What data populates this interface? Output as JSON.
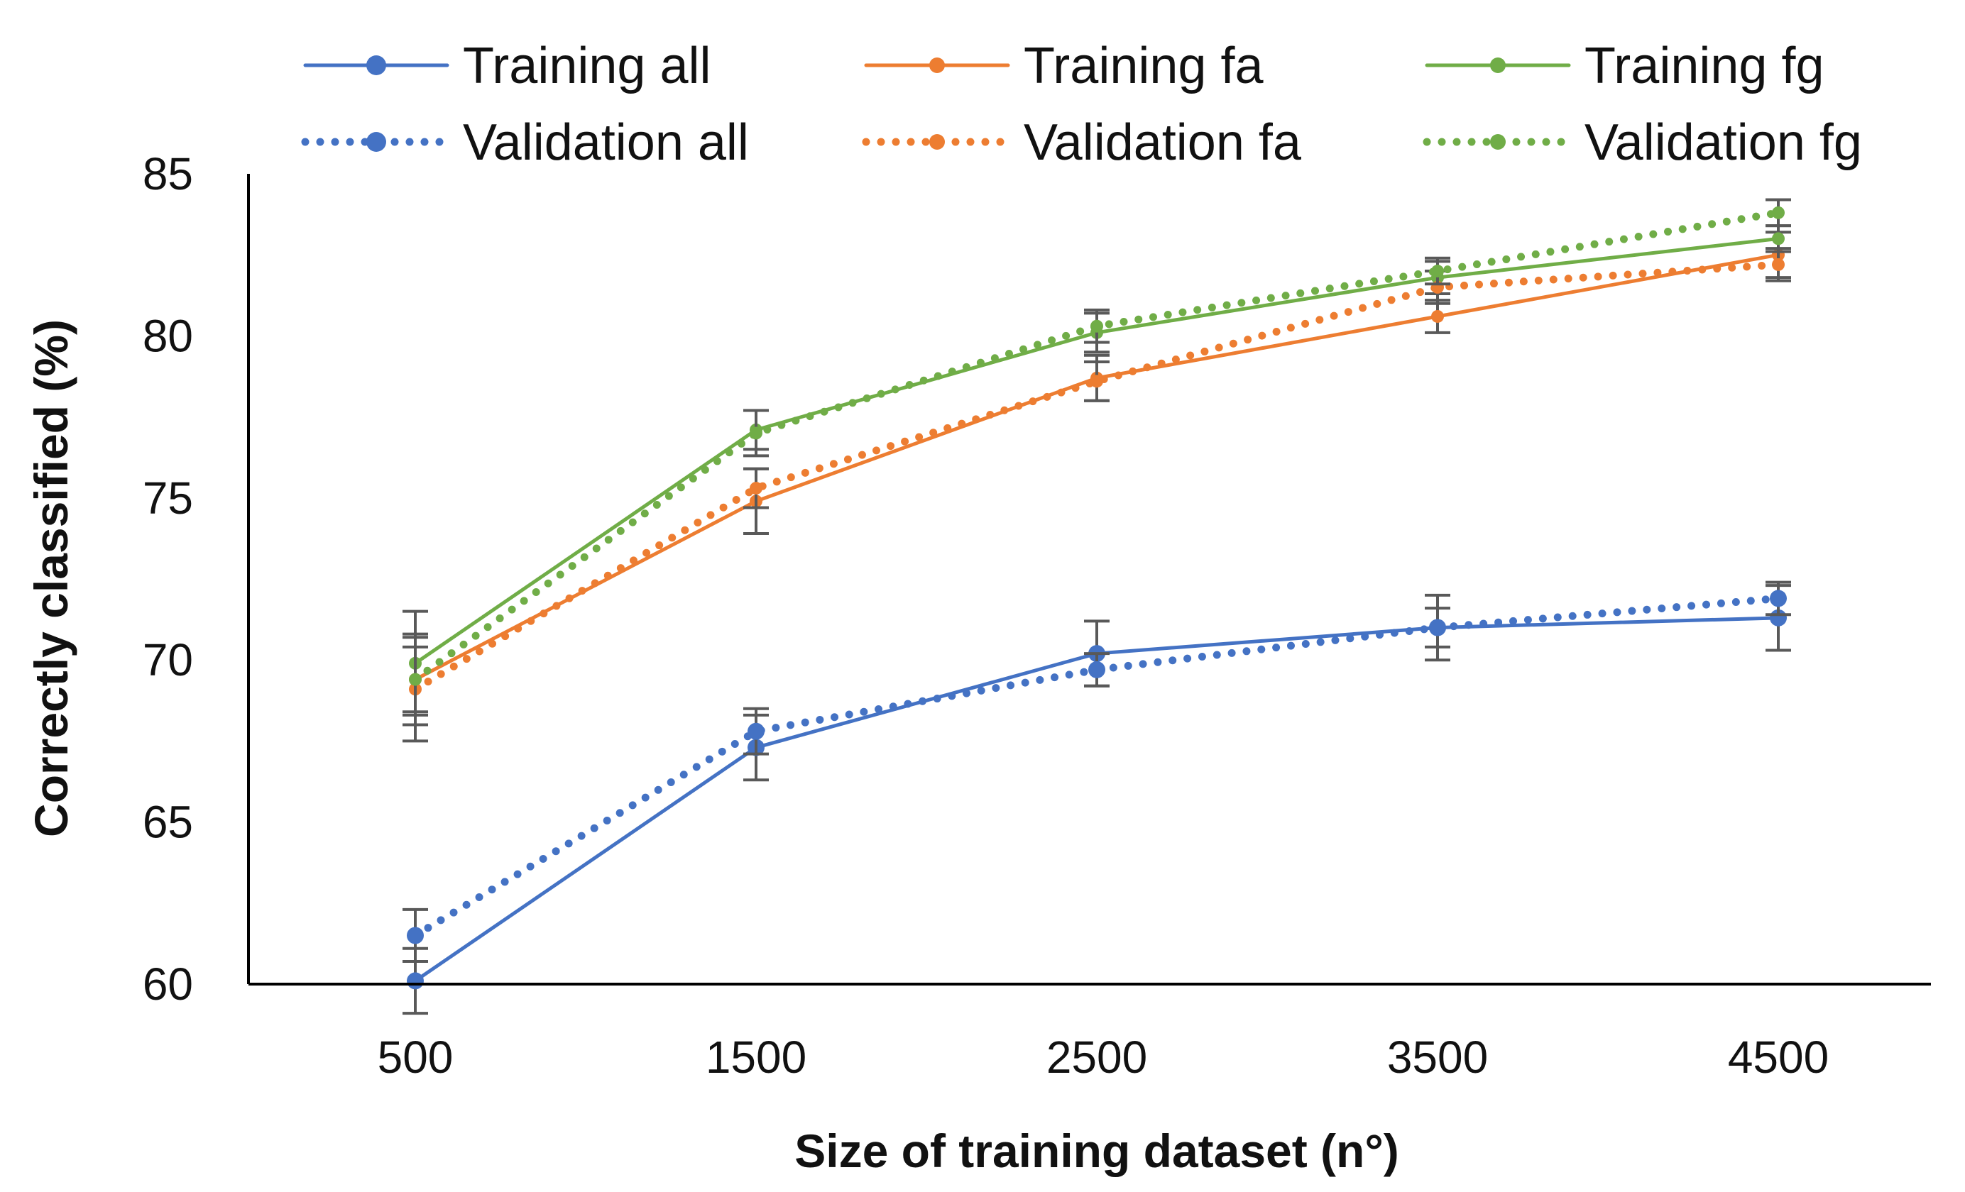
{
  "chart_data": {
    "type": "line",
    "title": "",
    "xlabel": "Size of training dataset (n°)",
    "ylabel": "Correctly classified (%)",
    "categories": [
      "500",
      "1500",
      "2500",
      "3500",
      "4500"
    ],
    "ylim": [
      60,
      85
    ],
    "yticks": [
      "60",
      "65",
      "70",
      "75",
      "80",
      "85"
    ],
    "grid": false,
    "legend_position": "top",
    "series": [
      {
        "name": "Training all",
        "style": "solid",
        "color": "#4472C4",
        "marker": "large",
        "values": [
          60.1,
          67.3,
          70.2,
          71.0,
          71.3
        ],
        "errors": [
          1.0,
          1.0,
          1.0,
          1.0,
          1.0
        ]
      },
      {
        "name": "Training fa",
        "style": "solid",
        "color": "#ED7D31",
        "marker": "small",
        "values": [
          69.4,
          74.9,
          78.7,
          80.6,
          82.5
        ],
        "errors": [
          1.0,
          1.0,
          0.7,
          0.5,
          0.7
        ]
      },
      {
        "name": "Training fg",
        "style": "solid",
        "color": "#70AD47",
        "marker": "small",
        "values": [
          69.9,
          77.1,
          80.1,
          81.8,
          83.0
        ],
        "errors": [
          1.6,
          0.6,
          0.6,
          0.5,
          0.4
        ]
      },
      {
        "name": "Validation all",
        "style": "dotted",
        "color": "#4472C4",
        "marker": "large",
        "values": [
          61.5,
          67.8,
          69.7,
          71.0,
          71.9
        ],
        "errors": [
          0.8,
          0.7,
          0.5,
          0.6,
          0.5
        ]
      },
      {
        "name": "Validation fa",
        "style": "dotted",
        "color": "#ED7D31",
        "marker": "small",
        "values": [
          69.1,
          75.3,
          78.6,
          81.5,
          82.2
        ],
        "errors": [
          1.6,
          0.6,
          0.6,
          0.5,
          0.5
        ]
      },
      {
        "name": "Validation fg",
        "style": "dotted",
        "color": "#70AD47",
        "marker": "small",
        "values": [
          69.4,
          77.0,
          80.3,
          82.0,
          83.8
        ],
        "errors": [
          1.4,
          0.7,
          0.5,
          0.4,
          0.4
        ]
      }
    ],
    "legend": {
      "rows": [
        [
          "Training all",
          "Training fa",
          "Training fg"
        ],
        [
          "Validation all",
          "Validation fa",
          "Validation fg"
        ]
      ]
    },
    "error_bar_color": "#595959",
    "axis_color": "#000000"
  }
}
